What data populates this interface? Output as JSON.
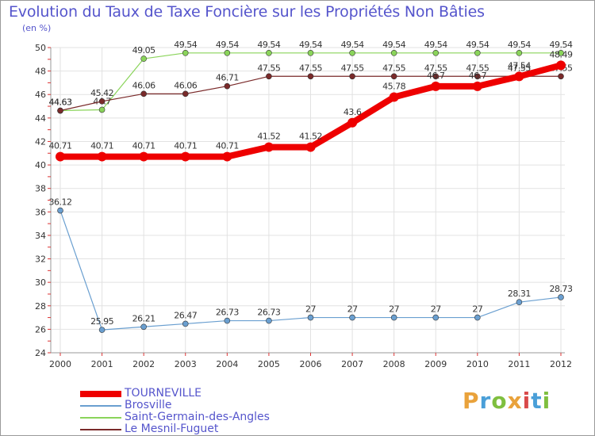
{
  "title": "Evolution du Taux de Taxe Foncière sur les Propriétés Non Bâties",
  "unit": "(en %)",
  "logo": {
    "letters": [
      "P",
      "r",
      "o",
      "x",
      "i",
      "t",
      "i"
    ],
    "colors": [
      "#e9a23b",
      "#4a9fd8",
      "#7fbf3f",
      "#e9a23b",
      "#d94a4a",
      "#4a9fd8",
      "#7fbf3f"
    ]
  },
  "chart_data": {
    "type": "line",
    "title": "Evolution du Taux de Taxe Foncière sur les Propriétés Non Bâties",
    "ylabel": "(en %)",
    "xlabel": "",
    "ylim": [
      24,
      50
    ],
    "yticks": [
      "24",
      "26",
      "28",
      "30",
      "32",
      "34",
      "36",
      "38",
      "40",
      "42",
      "44",
      "46",
      "48",
      "50"
    ],
    "categories": [
      "2000",
      "2001",
      "2002",
      "2003",
      "2004",
      "2005",
      "2006",
      "2007",
      "2008",
      "2009",
      "2010",
      "2011",
      "2012"
    ],
    "series": [
      {
        "name": "Saint-Germain-des-Angles",
        "color": "#8ad45a",
        "width": 1.2,
        "marker": 3.5,
        "values": [
          44.63,
          44.7,
          49.05,
          49.54,
          49.54,
          49.54,
          49.54,
          49.54,
          49.54,
          49.54,
          49.54,
          49.54,
          49.54
        ],
        "labels": [
          "44.63",
          "44.7",
          "49.05",
          "49.54",
          "49.54",
          "49.54",
          "49.54",
          "49.54",
          "49.54",
          "49.54",
          "49.54",
          "49.54",
          "49.54"
        ]
      },
      {
        "name": "Le Mesnil-Fuguet",
        "color": "#7a2a2a",
        "width": 1.2,
        "marker": 3.5,
        "values": [
          44.63,
          45.42,
          46.06,
          46.06,
          46.71,
          47.55,
          47.55,
          47.55,
          47.55,
          47.55,
          47.55,
          47.55,
          47.55
        ],
        "labels": [
          "44.63",
          "45.42",
          "46.06",
          "46.06",
          "46.71",
          "47.55",
          "47.55",
          "47.55",
          "47.55",
          "47.55",
          "47.55",
          "47.55",
          "47.55"
        ]
      },
      {
        "name": "TOURNEVILLE",
        "color": "#ee0000",
        "width": 8,
        "marker": 6,
        "values": [
          40.71,
          40.71,
          40.71,
          40.71,
          40.71,
          41.52,
          41.52,
          43.6,
          45.78,
          46.7,
          46.7,
          47.54,
          48.49
        ],
        "labels": [
          "40.71",
          "40.71",
          "40.71",
          "40.71",
          "40.71",
          "41.52",
          "41.52",
          "43.6",
          "45.78",
          "46.7",
          "46.7",
          "47.54",
          "48.49"
        ]
      },
      {
        "name": "Brosville",
        "color": "#6a9fd0",
        "width": 1.2,
        "marker": 3.5,
        "values": [
          36.12,
          25.95,
          26.21,
          26.47,
          26.73,
          26.73,
          27,
          27,
          27,
          27,
          27,
          28.31,
          28.73
        ],
        "labels": [
          "36.12",
          "25.95",
          "26.21",
          "26.47",
          "26.73",
          "26.73",
          "27",
          "27",
          "27",
          "27",
          "27",
          "28.31",
          "28.73"
        ]
      }
    ],
    "legend": [
      {
        "name": "TOURNEVILLE",
        "color": "#ee0000",
        "width": 8
      },
      {
        "name": "Brosville",
        "color": "#6a9fd0",
        "width": 1.5
      },
      {
        "name": "Saint-Germain-des-Angles",
        "color": "#8ad45a",
        "width": 1.5
      },
      {
        "name": "Le Mesnil-Fuguet",
        "color": "#7a2a2a",
        "width": 1.5
      }
    ],
    "legend_position": "bottom-left"
  }
}
